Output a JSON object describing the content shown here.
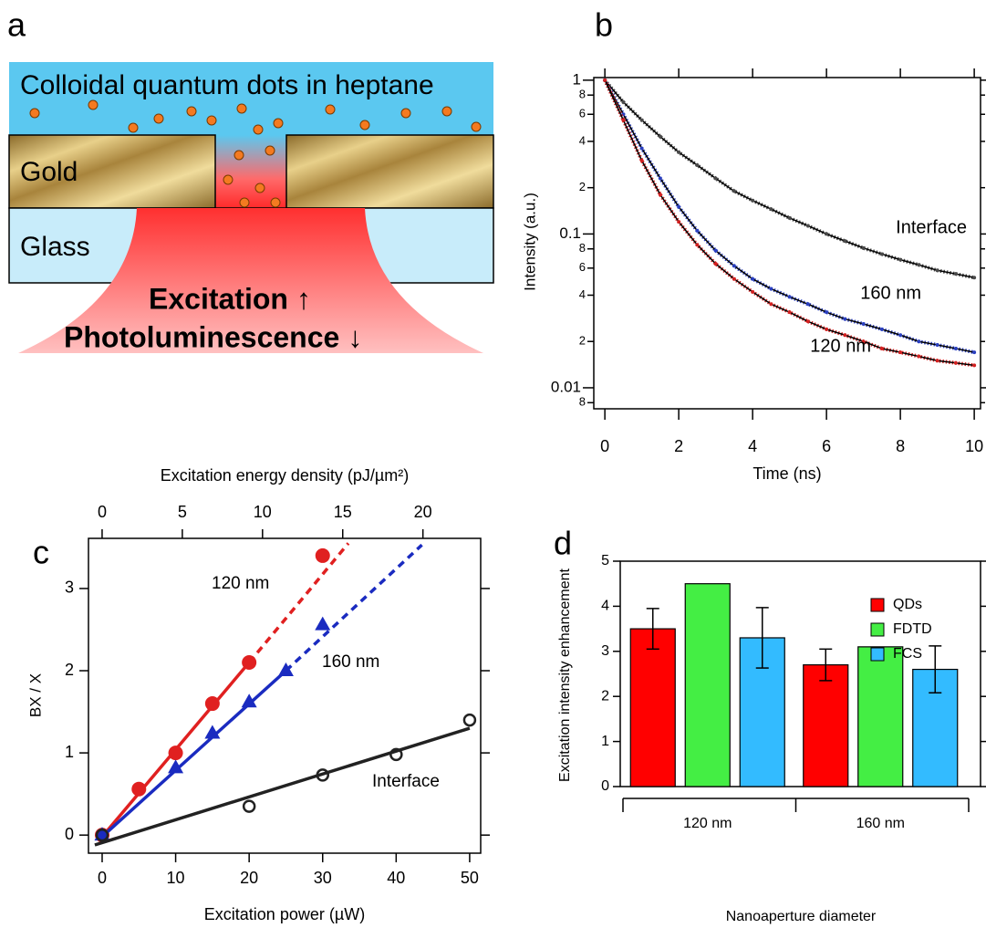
{
  "diagram": {
    "label": "a",
    "texts": {
      "medium": "Colloidal quantum dots in heptane",
      "gold": "Gold",
      "glass": "Glass",
      "excitation": "Excitation ↑",
      "photoluminescence": "Photoluminescence ↓"
    }
  },
  "chart_data": [
    {
      "type": "line",
      "label": "b",
      "xlabel": "Time (ns)",
      "ylabel": "Intensity (a.u.)",
      "log_y": true,
      "x": [
        0,
        0.5,
        1,
        1.5,
        2,
        2.5,
        3,
        3.5,
        4,
        4.5,
        5,
        5.5,
        6,
        6.5,
        7,
        7.5,
        8,
        8.5,
        9,
        9.5,
        10
      ],
      "series": [
        {
          "name": "Interface",
          "color": "#4a4a4a",
          "values": [
            1.0,
            0.72,
            0.55,
            0.43,
            0.34,
            0.28,
            0.23,
            0.19,
            0.165,
            0.145,
            0.127,
            0.113,
            0.1,
            0.09,
            0.081,
            0.074,
            0.068,
            0.063,
            0.058,
            0.055,
            0.052
          ]
        },
        {
          "name": "160 nm",
          "color": "#2a3fc0",
          "values": [
            1.0,
            0.6,
            0.36,
            0.23,
            0.15,
            0.105,
            0.078,
            0.062,
            0.051,
            0.044,
            0.039,
            0.035,
            0.031,
            0.028,
            0.026,
            0.024,
            0.022,
            0.02,
            0.019,
            0.018,
            0.017
          ]
        },
        {
          "name": "120 nm",
          "color": "#d42020",
          "values": [
            1.0,
            0.55,
            0.3,
            0.18,
            0.12,
            0.085,
            0.064,
            0.051,
            0.042,
            0.035,
            0.031,
            0.027,
            0.024,
            0.022,
            0.02,
            0.018,
            0.017,
            0.016,
            0.015,
            0.0145,
            0.014
          ]
        }
      ],
      "xlim": [
        -0.3,
        10.17
      ],
      "xticks": [
        0,
        2,
        4,
        6,
        8,
        10
      ],
      "ylim": [
        0.0073,
        1.04
      ],
      "yticks": [
        1,
        {
          "value": 0.8,
          "label": "8"
        },
        {
          "value": 0.6,
          "label": "6"
        },
        {
          "value": 0.4,
          "label": "4"
        },
        {
          "value": 0.2,
          "label": "2"
        },
        0.1,
        {
          "value": 0.08,
          "label": "8"
        },
        {
          "value": 0.06,
          "label": "6"
        },
        {
          "value": 0.04,
          "label": "4"
        },
        {
          "value": 0.02,
          "label": "2"
        },
        0.01,
        {
          "value": 0.008,
          "label": "8"
        }
      ]
    },
    {
      "type": "scatter",
      "label": "c",
      "xlabel": "Excitation power (µW)",
      "x2label": "Excitation energy density (pJ/µm²)",
      "ylabel": "BX / X",
      "series": [
        {
          "name": "120 nm",
          "color": "#e02020",
          "marker": "circle",
          "filled": true,
          "x": [
            0,
            5,
            10,
            15,
            20,
            30
          ],
          "values": [
            0,
            0.56,
            1.0,
            1.6,
            2.1,
            3.4
          ],
          "fit": {
            "x": [
              0,
              20
            ],
            "y": [
              -0.02,
              2.1
            ]
          },
          "fit_extension": {
            "x": [
              20,
              33.5
            ],
            "y": [
              2.1,
              3.55
            ]
          }
        },
        {
          "name": "160 nm",
          "color": "#1a2bc0",
          "marker": "triangle",
          "filled": true,
          "x": [
            0,
            10,
            15,
            20,
            25,
            30
          ],
          "values": [
            0,
            0.82,
            1.24,
            1.62,
            2.0,
            2.56
          ],
          "fit": {
            "x": [
              0,
              25
            ],
            "y": [
              -0.02,
              2.0
            ]
          },
          "fit_extension": {
            "x": [
              25,
              43.5
            ],
            "y": [
              2.0,
              3.53
            ]
          }
        },
        {
          "name": "Interface",
          "color": "#222222",
          "marker": "circle",
          "filled": false,
          "x": [
            0,
            20,
            30,
            40,
            50
          ],
          "values": [
            0,
            0.35,
            0.73,
            0.98,
            1.4
          ],
          "fit": {
            "x": [
              -1,
              50
            ],
            "y": [
              -0.12,
              1.3
            ]
          }
        }
      ],
      "xlim": [
        -1.86,
        51.5
      ],
      "xticks": [
        0,
        10,
        20,
        30,
        40,
        50
      ],
      "x2lim": [
        -0.85,
        23.6
      ],
      "x2ticks": [
        0,
        5,
        10,
        15,
        20
      ],
      "ylim": [
        -0.22,
        3.61
      ],
      "yticks": [
        0,
        1,
        2,
        3
      ]
    },
    {
      "type": "bar",
      "label": "d",
      "xlabel": "Nanoaperture diameter",
      "ylabel": "Excitation intensity enhancement",
      "legend": "top-right",
      "categories": [
        "120 nm",
        "160 nm"
      ],
      "series": [
        {
          "name": "QDs",
          "color": "#ff0000",
          "values": [
            3.5,
            2.7
          ],
          "errors": [
            0.45,
            0.35
          ]
        },
        {
          "name": "FDTD",
          "color": "#44ee44",
          "values": [
            4.5,
            3.1
          ]
        },
        {
          "name": "FCS",
          "color": "#33bbff",
          "values": [
            3.3,
            2.6
          ],
          "errors": [
            0.67,
            0.52
          ]
        }
      ],
      "ylim": [
        0,
        5
      ],
      "yticks": [
        0,
        1,
        2,
        3,
        4,
        5
      ]
    }
  ]
}
